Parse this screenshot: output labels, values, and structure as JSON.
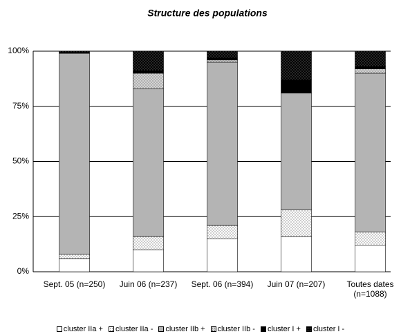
{
  "chart_data": {
    "type": "stacked_bar",
    "title": "Structure des populations",
    "categories": [
      "Sept. 05 (n=250)",
      "Juin 06 (n=237)",
      "Sept. 06 (n=394)",
      "Juin 07 (n=207)",
      "Toutes dates (n=1088)"
    ],
    "series": [
      {
        "name": "cluster IIa +",
        "color": "#ffffff",
        "pattern": "solid",
        "values": [
          6,
          10,
          15,
          16,
          12
        ]
      },
      {
        "name": "cluster IIa -",
        "color": "#ffffff",
        "pattern": "dots",
        "values": [
          2,
          6,
          6,
          12,
          6
        ]
      },
      {
        "name": "cluster IIb +",
        "color": "#b4b4b4",
        "pattern": "solid",
        "values": [
          91,
          67,
          74,
          53,
          72
        ]
      },
      {
        "name": "cluster IIb -",
        "color": "#d4d4d4",
        "pattern": "dots",
        "values": [
          0,
          7,
          1,
          0,
          2
        ]
      },
      {
        "name": "cluster I +",
        "color": "#000000",
        "pattern": "solid",
        "values": [
          0.5,
          1,
          1,
          6,
          1
        ]
      },
      {
        "name": "cluster I -",
        "color": "#000000",
        "pattern": "dots",
        "values": [
          0.5,
          9,
          3,
          13,
          7
        ]
      }
    ],
    "ylim": [
      0,
      100
    ],
    "yticks": [
      {
        "value": 0,
        "label": "0%"
      },
      {
        "value": 25,
        "label": "25%"
      },
      {
        "value": 50,
        "label": "50%"
      },
      {
        "value": 75,
        "label": "75%"
      },
      {
        "value": 100,
        "label": "100%"
      }
    ],
    "grid": true,
    "legend": "bottom"
  }
}
